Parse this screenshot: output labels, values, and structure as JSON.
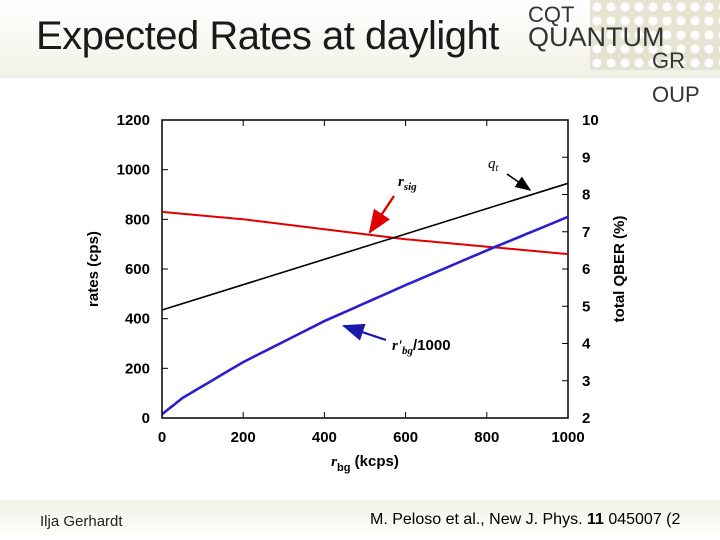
{
  "slide": {
    "title": "Expected Rates at daylight",
    "logo": {
      "line1": "CQT",
      "line2": "QUANTUM",
      "line3": "GR",
      "line4": "OUP"
    },
    "author": "Ilja Gerhardt",
    "citation": {
      "prefix": "M. Peloso et al., New J. Phys. ",
      "volume": "11",
      "suffix": " 045007 (2"
    }
  },
  "colors": {
    "r_sig": "#e00000",
    "r_bg_prime": "#2a1fd0",
    "q_t": "#000000",
    "axes": "#000000",
    "annotation_arrow": "#1a1aaa"
  },
  "chart_data": {
    "type": "line",
    "xlabel": "r_bg (kcps)",
    "ylabel": "rates (cps)",
    "y2label": "total QBER (%)",
    "xlim": [
      0,
      1000
    ],
    "ylim": [
      0,
      1200
    ],
    "y2lim": [
      2,
      10
    ],
    "xticks": [
      "0",
      "200",
      "400",
      "600",
      "800",
      "1000"
    ],
    "yticks": [
      "0",
      "200",
      "400",
      "600",
      "800",
      "1000",
      "1200"
    ],
    "y2ticks": [
      "2",
      "3",
      "4",
      "5",
      "6",
      "7",
      "8",
      "9",
      "10"
    ],
    "grid": false,
    "series": [
      {
        "name": "r_sig",
        "axis": "left",
        "x": [
          0,
          200,
          400,
          600,
          800,
          1000
        ],
        "values": [
          830,
          800,
          760,
          720,
          690,
          660
        ]
      },
      {
        "name": "r'_bg/1000",
        "axis": "left",
        "x": [
          0,
          50,
          200,
          400,
          600,
          800,
          1000
        ],
        "values": [
          15,
          80,
          225,
          390,
          535,
          675,
          810
        ]
      },
      {
        "name": "q_t",
        "axis": "right",
        "x": [
          0,
          1000
        ],
        "values": [
          4.9,
          8.3
        ]
      }
    ],
    "annotations": [
      {
        "text": "q",
        "sub": "t"
      },
      {
        "text": "r",
        "sub": "sig"
      },
      {
        "text": "r'",
        "sub": "bg",
        "tail": "/1000"
      }
    ]
  }
}
